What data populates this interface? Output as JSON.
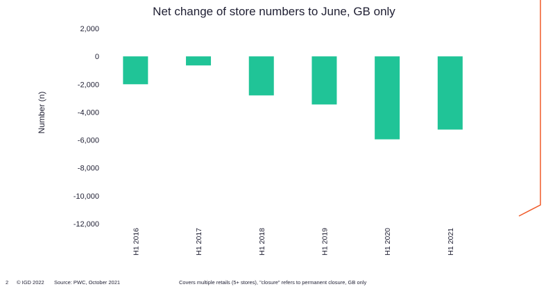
{
  "chart_data": {
    "type": "bar",
    "title": "Net change of store numbers to June, GB only",
    "ylabel": "Number (n)",
    "xlabel": "",
    "categories": [
      "H1 2016",
      "H1 2017",
      "H1 2018",
      "H1 2019",
      "H1 2020",
      "H1 2021"
    ],
    "values": [
      -2000,
      -650,
      -2800,
      -3450,
      -5950,
      -5250
    ],
    "ylim": [
      -12000,
      2000
    ],
    "yticks": [
      2000,
      0,
      -2000,
      -4000,
      -6000,
      -8000,
      -10000,
      -12000
    ],
    "ytick_labels": [
      "2,000",
      "0",
      "-2,000",
      "-4,000",
      "-6,000",
      "-8,000",
      "-10,000",
      "-12,000"
    ],
    "bar_color": "#20c497",
    "grid": false,
    "legend": "none"
  },
  "footer": {
    "page": "2",
    "copyright": "© IGD 2022",
    "source": "Source: PWC, October 2021",
    "note": "Covers multiple retails (5+ stores), \"closure\" refers to permanent closure, GB only"
  },
  "accent_color": "#f05a28"
}
